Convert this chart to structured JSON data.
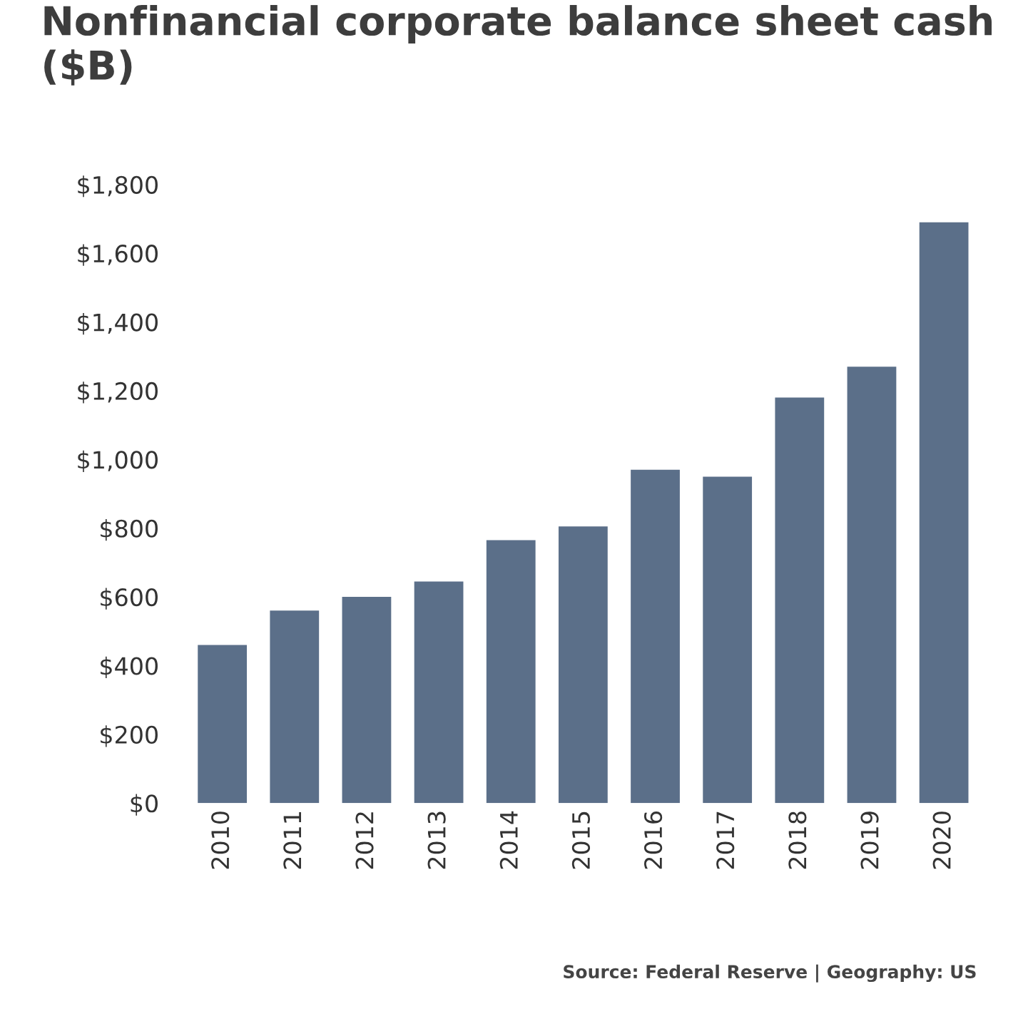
{
  "chart_data": {
    "type": "bar",
    "title": "Nonfinancial corporate balance sheet cash ($B)",
    "categories": [
      "2010",
      "2011",
      "2012",
      "2013",
      "2014",
      "2015",
      "2016",
      "2017",
      "2018",
      "2019",
      "2020"
    ],
    "values": [
      460,
      560,
      600,
      645,
      765,
      805,
      970,
      950,
      1180,
      1270,
      1690
    ],
    "color": "#5b6f89",
    "ylim": [
      0,
      1800
    ],
    "yticks": [
      {
        "value": 0,
        "label": "$0"
      },
      {
        "value": 200,
        "label": "$200"
      },
      {
        "value": 400,
        "label": "$400"
      },
      {
        "value": 600,
        "label": "$600"
      },
      {
        "value": 800,
        "label": "$800"
      },
      {
        "value": 1000,
        "label": "$1,000"
      },
      {
        "value": 1200,
        "label": "$1,200"
      },
      {
        "value": 1400,
        "label": "$1,400"
      },
      {
        "value": 1600,
        "label": "$1,600"
      },
      {
        "value": 1800,
        "label": "$1,800"
      }
    ],
    "grid": false,
    "annotations": [
      "Source: Federal Reserve | Geography: US"
    ]
  }
}
